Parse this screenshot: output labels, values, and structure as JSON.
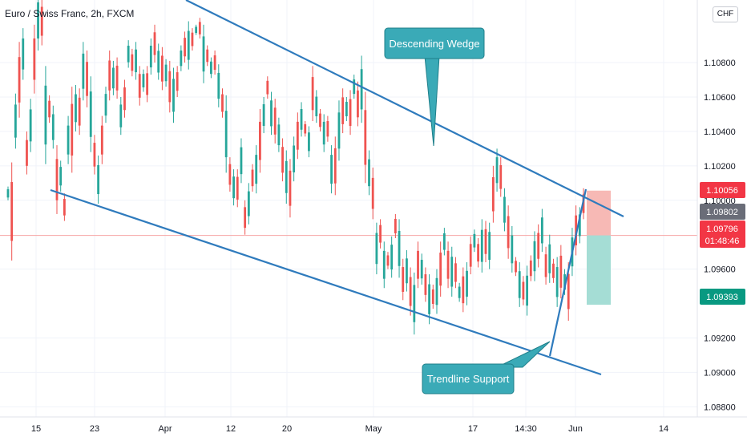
{
  "header": {
    "symbol_title": "Euro / Swiss Franc, 2h, FXCM"
  },
  "price_axis": {
    "currency": "CHF"
  },
  "colors": {
    "trendline": "#2f7bbd",
    "callout": "#3aaab7",
    "candle_up": "#26a69a",
    "candle_down": "#ef5350",
    "stop_zone": "#f7b9b5",
    "target_zone": "#a5ddd5"
  },
  "chart_data": {
    "type": "candlestick",
    "title": "Euro / Swiss Franc, 2h, FXCM",
    "ylim": [
      1.0875,
      1.1145
    ],
    "y_ticks": [
      "1.10800",
      "1.10600",
      "1.10400",
      "1.10200",
      "1.10000",
      "1.09600",
      "1.09200",
      "1.09000",
      "1.08800"
    ],
    "x_tick_labels": [
      "15",
      "23",
      "Apr",
      "12",
      "20",
      "May",
      "17",
      "14:30",
      "Jun",
      "14"
    ],
    "price_labels": [
      {
        "text": "1.10056",
        "color": "#f23645"
      },
      {
        "text": "1.09802",
        "color": "#6a6d78"
      },
      {
        "text": "1.09796",
        "sub": "01:48:46",
        "color": "#f23645"
      },
      {
        "text": "1.09393",
        "color": "#089981"
      }
    ],
    "series": [
      {
        "values": [
          [
            1.1,
            1.1008
          ],
          [
            1.0965,
            1.1022
          ],
          [
            1.103,
            1.1062
          ],
          [
            1.1048,
            1.1092
          ],
          [
            1.107,
            1.11
          ],
          [
            1.1015,
            1.104
          ],
          [
            1.1028,
            1.1059
          ],
          [
            1.1062,
            1.1102
          ],
          [
            1.1087,
            1.1122
          ],
          [
            1.109,
            1.1118
          ],
          [
            1.1021,
            1.1078
          ],
          [
            1.1045,
            1.1061
          ],
          [
            1.103,
            1.1055
          ],
          [
            1.0992,
            1.1032
          ],
          [
            1.1005,
            1.1023
          ],
          [
            1.0988,
            1.1004
          ],
          [
            1.1021,
            1.1049
          ],
          [
            1.1016,
            1.1066
          ],
          [
            1.104,
            1.1067
          ],
          [
            1.1038,
            1.1065
          ],
          [
            1.1058,
            1.1092
          ],
          [
            1.1054,
            1.1087
          ],
          [
            1.1028,
            1.1072
          ],
          [
            1.1015,
            1.1038
          ],
          [
            1.0998,
            1.1026
          ],
          [
            1.1021,
            1.1049
          ],
          [
            1.1045,
            1.1066
          ],
          [
            1.1058,
            1.1087
          ],
          [
            1.1061,
            1.1081
          ],
          [
            1.1059,
            1.1083
          ],
          [
            1.1038,
            1.106
          ],
          [
            1.1048,
            1.107
          ],
          [
            1.1077,
            1.1093
          ],
          [
            1.1072,
            1.1088
          ],
          [
            1.107,
            1.1092
          ],
          [
            1.1055,
            1.1078
          ],
          [
            1.1063,
            1.1076
          ],
          [
            1.1057,
            1.1078
          ],
          [
            1.1073,
            1.1094
          ],
          [
            1.108,
            1.1102
          ],
          [
            1.107,
            1.1091
          ],
          [
            1.1064,
            1.1089
          ],
          [
            1.1066,
            1.1082
          ],
          [
            1.1051,
            1.1081
          ],
          [
            1.1045,
            1.1077
          ],
          [
            1.106,
            1.1078
          ],
          [
            1.1075,
            1.109
          ],
          [
            1.108,
            1.1098
          ],
          [
            1.1076,
            1.1104
          ],
          [
            1.1087,
            1.11
          ],
          [
            1.1096,
            1.1102
          ],
          [
            1.1094,
            1.1106
          ],
          [
            1.1068,
            1.1102
          ],
          [
            1.1078,
            1.109
          ],
          [
            1.1071,
            1.1083
          ],
          [
            1.1073,
            1.1087
          ],
          [
            1.1054,
            1.1079
          ],
          [
            1.1048,
            1.1065
          ],
          [
            1.1016,
            1.1061
          ],
          [
            1.1005,
            1.1025
          ],
          [
            1.0997,
            1.1018
          ],
          [
            1.0996,
            1.1018
          ],
          [
            1.101,
            1.1036
          ],
          [
            1.098,
            1.1
          ],
          [
            1.0986,
            1.101
          ],
          [
            1.1005,
            1.1021
          ],
          [
            1.1004,
            1.1032
          ],
          [
            1.1016,
            1.1053
          ],
          [
            1.1039,
            1.106
          ],
          [
            1.1059,
            1.1072
          ],
          [
            1.1038,
            1.1063
          ],
          [
            1.1033,
            1.1059
          ],
          [
            1.1028,
            1.1048
          ],
          [
            1.1011,
            1.1036
          ],
          [
            1.0998,
            1.1029
          ],
          [
            1.099,
            1.1024
          ],
          [
            1.1011,
            1.1037
          ],
          [
            1.1024,
            1.1051
          ],
          [
            1.1037,
            1.1057
          ],
          [
            1.1037,
            1.1046
          ],
          [
            1.1025,
            1.1043
          ],
          [
            1.1046,
            1.1078
          ],
          [
            1.1045,
            1.1064
          ],
          [
            1.104,
            1.1053
          ],
          [
            1.1028,
            1.105
          ],
          [
            1.1034,
            1.1049
          ],
          [
            1.1004,
            1.1032
          ],
          [
            1.1003,
            1.1037
          ],
          [
            1.1023,
            1.1058
          ],
          [
            1.1039,
            1.1065
          ],
          [
            1.1046,
            1.106
          ],
          [
            1.1038,
            1.1064
          ],
          [
            1.1059,
            1.1073
          ],
          [
            1.1043,
            1.1069
          ],
          [
            1.1045,
            1.1084
          ],
          [
            1.101,
            1.1063
          ],
          [
            1.1003,
            1.1029
          ],
          [
            1.0989,
            1.1019
          ],
          [
            1.0957,
            1.0987
          ],
          [
            1.0972,
            1.0989
          ],
          [
            1.0949,
            1.0976
          ],
          [
            1.096,
            1.097
          ],
          [
            1.0955,
            1.0979
          ],
          [
            1.0978,
            1.0992
          ],
          [
            1.0955,
            1.0989
          ],
          [
            1.0942,
            1.0966
          ],
          [
            1.0947,
            1.0971
          ],
          [
            1.0933,
            1.0961
          ],
          [
            1.0922,
            1.0958
          ],
          [
            1.0949,
            1.0976
          ],
          [
            1.0951,
            1.0969
          ],
          [
            1.0941,
            1.0961
          ],
          [
            1.0928,
            1.0957
          ],
          [
            1.0937,
            1.0951
          ],
          [
            1.0934,
            1.096
          ],
          [
            1.0944,
            1.0976
          ],
          [
            1.0968,
            1.0984
          ],
          [
            1.0949,
            1.0976
          ],
          [
            1.0944,
            1.0973
          ],
          [
            1.0949,
            1.0967
          ],
          [
            1.0941,
            1.0952
          ],
          [
            1.0935,
            1.0961
          ],
          [
            1.0939,
            1.0964
          ],
          [
            1.0957,
            1.0979
          ],
          [
            1.097,
            1.0983
          ],
          [
            1.0961,
            1.0978
          ],
          [
            1.0958,
            1.0989
          ],
          [
            1.0964,
            1.0988
          ],
          [
            1.096,
            1.0987
          ],
          [
            1.0987,
            1.102
          ],
          [
            1.1005,
            1.103
          ],
          [
            1.1002,
            1.1025
          ],
          [
            1.0982,
            1.1007
          ],
          [
            1.0966,
            1.0997
          ],
          [
            1.0958,
            1.0985
          ],
          [
            1.0956,
            1.0967
          ],
          [
            1.0938,
            1.0964
          ],
          [
            1.0939,
            1.0956
          ],
          [
            1.0933,
            1.0962
          ],
          [
            1.0953,
            1.0968
          ],
          [
            1.0953,
            1.0982
          ],
          [
            1.0961,
            1.0986
          ],
          [
            1.097,
            1.0995
          ],
          [
            1.0951,
            1.0973
          ],
          [
            1.0952,
            1.098
          ],
          [
            1.0952,
            1.0966
          ],
          [
            1.0938,
            1.0967
          ],
          [
            1.0943,
            1.0974
          ],
          [
            1.0945,
            1.096
          ],
          [
            1.093,
            1.0964
          ],
          [
            1.0956,
            1.0984
          ],
          [
            1.0968,
            1.0997
          ],
          [
            1.0975,
            1.0996
          ],
          [
            1.0989,
            1.1007
          ]
        ]
      }
    ]
  },
  "annotations": {
    "wedge_label": "Descending Wedge",
    "support_label": "Trendline Support"
  }
}
